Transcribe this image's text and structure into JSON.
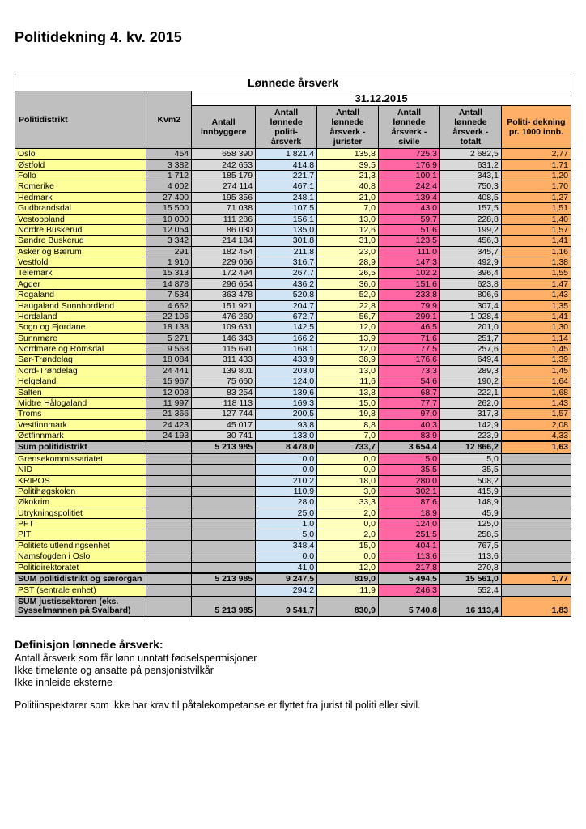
{
  "title": "Politidekning     4. kv. 2015",
  "tableHeader": {
    "super1": "Lønnede årsverk",
    "super2": "31.12.2015",
    "politidistrikt": "Politidistrikt",
    "kvm2": "Kvm2",
    "c1": "Antall innbyggere",
    "c2": "Antall lønnede politi- årsverk",
    "c3": "Antall lønnede årsverk - jurister",
    "c4": "Antall lønnede årsverk - sivile",
    "c5": "Antall lønnede årsverk - totalt",
    "c6": "Politi- dekning pr. 1000 innb."
  },
  "colors": {
    "yellow": "#ffff99",
    "grey": "#bfbfbf",
    "ltgrey": "#d9d9d9",
    "ltblue": "#d0e4f5",
    "ltyellow": "#ffffc0",
    "pink": "#ff66a3",
    "orange": "#ffb066",
    "white": "#ffffff"
  },
  "districts": [
    {
      "name": "Oslo",
      "kvm2": "454",
      "c1": "658 390",
      "c2": "1 821,4",
      "c3": "135,8",
      "c4": "725,3",
      "c5": "2 682,5",
      "c6": "2,77"
    },
    {
      "name": "Østfold",
      "kvm2": "3 382",
      "c1": "242 653",
      "c2": "414,8",
      "c3": "39,5",
      "c4": "176,9",
      "c5": "631,2",
      "c6": "1,71"
    },
    {
      "name": "Follo",
      "kvm2": "1 712",
      "c1": "185 179",
      "c2": "221,7",
      "c3": "21,3",
      "c4": "100,1",
      "c5": "343,1",
      "c6": "1,20"
    },
    {
      "name": "Romerike",
      "kvm2": "4 002",
      "c1": "274 114",
      "c2": "467,1",
      "c3": "40,8",
      "c4": "242,4",
      "c5": "750,3",
      "c6": "1,70"
    },
    {
      "name": "Hedmark",
      "kvm2": "27 400",
      "c1": "195 356",
      "c2": "248,1",
      "c3": "21,0",
      "c4": "139,4",
      "c5": "408,5",
      "c6": "1,27"
    },
    {
      "name": "Gudbrandsdal",
      "kvm2": "15 500",
      "c1": "71 038",
      "c2": "107,5",
      "c3": "7,0",
      "c4": "43,0",
      "c5": "157,5",
      "c6": "1,51"
    },
    {
      "name": "Vestoppland",
      "kvm2": "10 000",
      "c1": "111 286",
      "c2": "156,1",
      "c3": "13,0",
      "c4": "59,7",
      "c5": "228,8",
      "c6": "1,40"
    },
    {
      "name": "Nordre Buskerud",
      "kvm2": "12 054",
      "c1": "86 030",
      "c2": "135,0",
      "c3": "12,6",
      "c4": "51,6",
      "c5": "199,2",
      "c6": "1,57"
    },
    {
      "name": "Søndre Buskerud",
      "kvm2": "3 342",
      "c1": "214 184",
      "c2": "301,8",
      "c3": "31,0",
      "c4": "123,5",
      "c5": "456,3",
      "c6": "1,41"
    },
    {
      "name": "Asker og Bærum",
      "kvm2": "291",
      "c1": "182 454",
      "c2": "211,8",
      "c3": "23,0",
      "c4": "111,0",
      "c5": "345,7",
      "c6": "1,16"
    },
    {
      "name": "Vestfold",
      "kvm2": "1 910",
      "c1": "229 066",
      "c2": "316,7",
      "c3": "28,9",
      "c4": "147,3",
      "c5": "492,9",
      "c6": "1,38"
    },
    {
      "name": "Telemark",
      "kvm2": "15 313",
      "c1": "172 494",
      "c2": "267,7",
      "c3": "26,5",
      "c4": "102,2",
      "c5": "396,4",
      "c6": "1,55"
    },
    {
      "name": "Agder",
      "kvm2": "14 878",
      "c1": "296 654",
      "c2": "436,2",
      "c3": "36,0",
      "c4": "151,6",
      "c5": "623,8",
      "c6": "1,47"
    },
    {
      "name": "Rogaland",
      "kvm2": "7 534",
      "c1": "363 478",
      "c2": "520,8",
      "c3": "52,0",
      "c4": "233,8",
      "c5": "806,6",
      "c6": "1,43"
    },
    {
      "name": "Haugaland Sunnhordland",
      "kvm2": "4 662",
      "c1": "151 921",
      "c2": "204,7",
      "c3": "22,8",
      "c4": "79,9",
      "c5": "307,4",
      "c6": "1,35"
    },
    {
      "name": "Hordaland",
      "kvm2": "22 106",
      "c1": "476 260",
      "c2": "672,7",
      "c3": "56,7",
      "c4": "299,1",
      "c5": "1 028,4",
      "c6": "1,41"
    },
    {
      "name": "Sogn og Fjordane",
      "kvm2": "18 138",
      "c1": "109 631",
      "c2": "142,5",
      "c3": "12,0",
      "c4": "46,5",
      "c5": "201,0",
      "c6": "1,30"
    },
    {
      "name": "Sunnmøre",
      "kvm2": "5 271",
      "c1": "146 343",
      "c2": "166,2",
      "c3": "13,9",
      "c4": "71,6",
      "c5": "251,7",
      "c6": "1,14"
    },
    {
      "name": "Nordmøre og Romsdal",
      "kvm2": "9 568",
      "c1": "115 691",
      "c2": "168,1",
      "c3": "12,0",
      "c4": "77,5",
      "c5": "257,6",
      "c6": "1,45"
    },
    {
      "name": "Sør-Trøndelag",
      "kvm2": "18 084",
      "c1": "311 433",
      "c2": "433,9",
      "c3": "38,9",
      "c4": "176,6",
      "c5": "649,4",
      "c6": "1,39"
    },
    {
      "name": "Nord-Trøndelag",
      "kvm2": "24 441",
      "c1": "139 801",
      "c2": "203,0",
      "c3": "13,0",
      "c4": "73,3",
      "c5": "289,3",
      "c6": "1,45"
    },
    {
      "name": "Helgeland",
      "kvm2": "15 967",
      "c1": "75 660",
      "c2": "124,0",
      "c3": "11,6",
      "c4": "54,6",
      "c5": "190,2",
      "c6": "1,64"
    },
    {
      "name": "Salten",
      "kvm2": "12 008",
      "c1": "83 254",
      "c2": "139,6",
      "c3": "13,8",
      "c4": "68,7",
      "c5": "222,1",
      "c6": "1,68"
    },
    {
      "name": "Midtre Hålogaland",
      "kvm2": "11 997",
      "c1": "118 113",
      "c2": "169,3",
      "c3": "15,0",
      "c4": "77,7",
      "c5": "262,0",
      "c6": "1,43"
    },
    {
      "name": "Troms",
      "kvm2": "21 366",
      "c1": "127 744",
      "c2": "200,5",
      "c3": "19,8",
      "c4": "97,0",
      "c5": "317,3",
      "c6": "1,57"
    },
    {
      "name": "Vestfinnmark",
      "kvm2": "24 423",
      "c1": "45 017",
      "c2": "93,8",
      "c3": "8,8",
      "c4": "40,3",
      "c5": "142,9",
      "c6": "2,08"
    },
    {
      "name": "Østfinnmark",
      "kvm2": "24 193",
      "c1": "30 741",
      "c2": "133,0",
      "c3": "7,0",
      "c4": "83,9",
      "c5": "223,9",
      "c6": "4,33"
    }
  ],
  "sumDistricts": {
    "name": "Sum politidistrikt",
    "c1": "5 213 985",
    "c2": "8 478,0",
    "c3": "733,7",
    "c4": "3 654,4",
    "c5": "12 866,2",
    "c6": "1,63"
  },
  "units": [
    {
      "name": "Grensekommissariatet",
      "c2": "0,0",
      "c3": "0,0",
      "c4": "5,0",
      "c5": "5,0"
    },
    {
      "name": "NID",
      "c2": "0,0",
      "c3": "0,0",
      "c4": "35,5",
      "c5": "35,5"
    },
    {
      "name": "KRIPOS",
      "c2": "210,2",
      "c3": "18,0",
      "c4": "280,0",
      "c5": "508,2"
    },
    {
      "name": "Politihøgskolen",
      "c2": "110,9",
      "c3": "3,0",
      "c4": "302,1",
      "c5": "415,9"
    },
    {
      "name": "Økokrim",
      "c2": "28,0",
      "c3": "33,3",
      "c4": "87,6",
      "c5": "148,9"
    },
    {
      "name": "Utrykningspolitiet",
      "c2": "25,0",
      "c3": "2,0",
      "c4": "18,9",
      "c5": "45,9"
    },
    {
      "name": "PFT",
      "c2": "1,0",
      "c3": "0,0",
      "c4": "124,0",
      "c5": "125,0"
    },
    {
      "name": "PIT",
      "c2": "5,0",
      "c3": "2,0",
      "c4": "251,5",
      "c5": "258,5"
    },
    {
      "name": "Politiets utlendingsenhet",
      "c2": "348,4",
      "c3": "15,0",
      "c4": "404,1",
      "c5": "767,5"
    },
    {
      "name": "Namsfogden i Oslo",
      "c2": "0,0",
      "c3": "0,0",
      "c4": "113,6",
      "c5": "113,6"
    },
    {
      "name": "Politidirektoratet",
      "c2": "41,0",
      "c3": "12,0",
      "c4": "217,8",
      "c5": "270,8"
    }
  ],
  "sumUnits": {
    "name": "SUM politidistrikt og særorgan",
    "c1": "5 213 985",
    "c2": "9 247,5",
    "c3": "819,0",
    "c4": "5 494,5",
    "c5": "15 561,0",
    "c6": "1,77"
  },
  "pst": {
    "name": "PST (sentrale enhet)",
    "c2": "294,2",
    "c3": "11,9",
    "c4": "246,3",
    "c5": "552,4"
  },
  "sumJustice": {
    "name": "SUM justissektoren (eks. Sysselmannen på Svalbard)",
    "c1": "5 213 985",
    "c2": "9 541,7",
    "c3": "830,9",
    "c4": "5 740,8",
    "c5": "16 113,4",
    "c6": "1,83"
  },
  "definitions": {
    "header": "Definisjon lønnede årsverk:",
    "lines": [
      "Antall årsverk som får lønn unntatt fødselspermisjoner",
      "Ikke timelønte og ansatte på pensjonistvilkår",
      "Ikke innleide eksterne"
    ],
    "footnote": "Politiinspektører som ikke har krav til påtalekompetanse er flyttet fra jurist til politi eller sivil."
  }
}
